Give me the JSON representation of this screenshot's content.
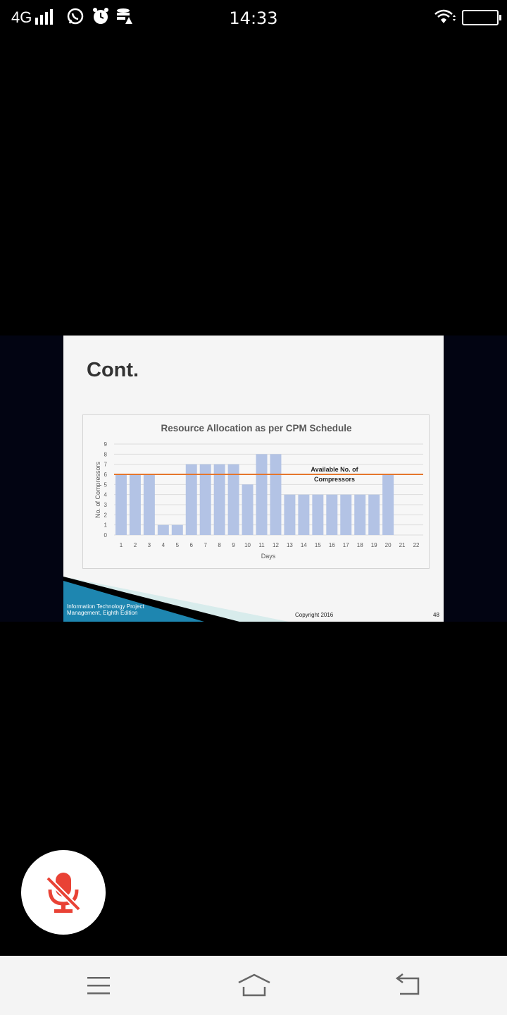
{
  "status_bar": {
    "network": "4G",
    "time": "14:33",
    "icons": [
      "signal-icon",
      "whatsapp-icon",
      "alarm-icon",
      "data-saver-icon",
      "wifi-icon",
      "battery-icon"
    ]
  },
  "slide": {
    "title": "Cont.",
    "footer_left": "Information Technology Project Management, Eighth Edition",
    "copyright": "Copyright 2016",
    "page_number": "48"
  },
  "chart_data": {
    "type": "bar",
    "title": "Resource Allocation as per CPM Schedule",
    "xlabel": "Days",
    "ylabel": "No. of Compressors",
    "categories": [
      "1",
      "2",
      "3",
      "4",
      "5",
      "6",
      "7",
      "8",
      "9",
      "10",
      "11",
      "12",
      "13",
      "14",
      "15",
      "16",
      "17",
      "18",
      "19",
      "20",
      "21",
      "22"
    ],
    "values": [
      6,
      6,
      6,
      1,
      1,
      7,
      7,
      7,
      7,
      5,
      8,
      8,
      4,
      4,
      4,
      4,
      4,
      4,
      4,
      6,
      0,
      0
    ],
    "ylim": [
      0,
      9
    ],
    "yticks": [
      "0",
      "1",
      "2",
      "3",
      "4",
      "5",
      "6",
      "7",
      "8",
      "9"
    ],
    "grid": true,
    "bar_color": "#b3c3e5",
    "line": {
      "label_line1": "Available No. of",
      "label_line2": "Compressors",
      "value": 6,
      "color": "#e5762c"
    }
  },
  "floating_button": {
    "icon": "mic-off-icon",
    "color": "#e94235"
  },
  "nav_bar": {
    "icons": [
      "menu-icon",
      "home-icon",
      "back-icon"
    ]
  }
}
